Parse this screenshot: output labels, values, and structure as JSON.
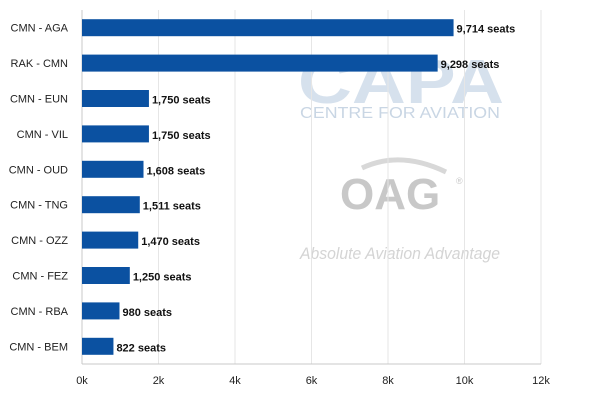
{
  "chart_data": {
    "type": "bar",
    "orientation": "horizontal",
    "categories": [
      "CMN - AGA",
      "RAK - CMN",
      "CMN - EUN",
      "CMN - VIL",
      "CMN - OUD",
      "CMN - TNG",
      "CMN - OZZ",
      "CMN - FEZ",
      "CMN - RBA",
      "CMN - BEM"
    ],
    "values": [
      9714,
      9298,
      1750,
      1750,
      1608,
      1511,
      1470,
      1250,
      980,
      822
    ],
    "data_labels": [
      "9,714 seats",
      "9,298 seats",
      "1,750 seats",
      "1,750 seats",
      "1,608 seats",
      "1,511 seats",
      "1,470 seats",
      "1,250 seats",
      "980 seats",
      "822 seats"
    ],
    "x_ticks": [
      0,
      2000,
      4000,
      6000,
      8000,
      10000,
      12000
    ],
    "x_tick_labels": [
      "0k",
      "2k",
      "4k",
      "6k",
      "8k",
      "10k",
      "12k"
    ],
    "xlim": [
      0,
      12000
    ],
    "grid": true,
    "bar_color": "#0b51a1",
    "title": "",
    "xlabel": "",
    "ylabel": ""
  },
  "watermarks": {
    "capa_logo": "CAPA",
    "capa_tagline": "CENTRE FOR AVIATION",
    "oag_logo": "OAG",
    "oag_tagline": "Absolute Aviation Advantage"
  }
}
